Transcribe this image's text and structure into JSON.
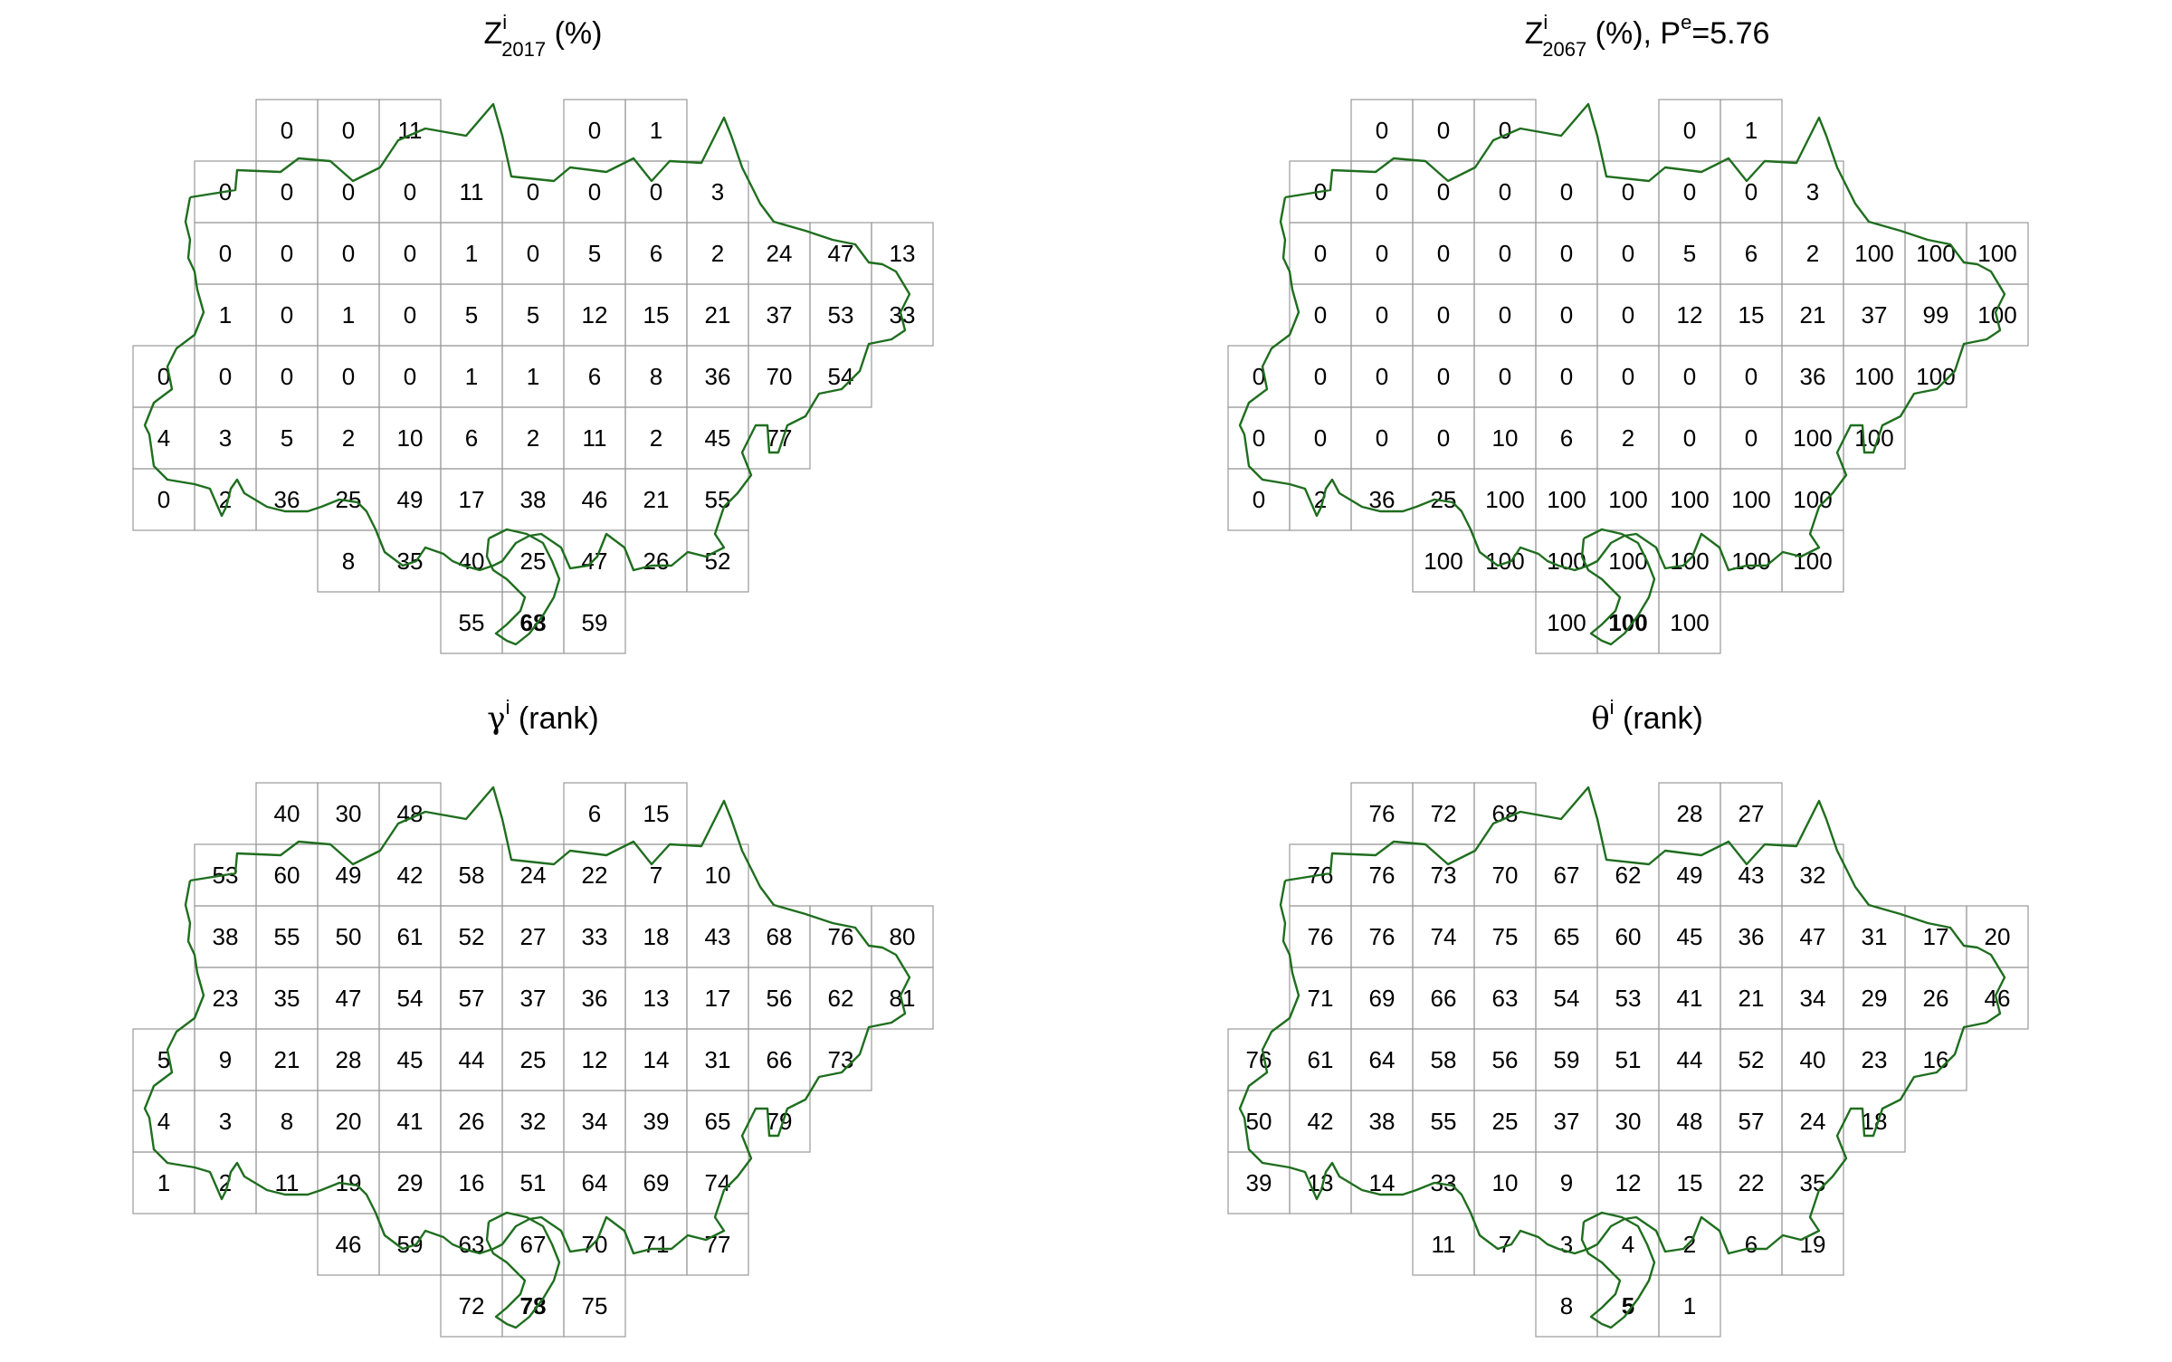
{
  "panels": [
    {
      "id": "z2017",
      "title": {
        "base": "Z",
        "sup": "i",
        "sub": "2017",
        "rest": " (%)"
      },
      "rows": [
        {
          "cells": [
            null,
            null,
            null,
            "0",
            "0",
            "11",
            null,
            null,
            "0",
            "1",
            null,
            null,
            null
          ],
          "bold": []
        },
        {
          "cells": [
            null,
            null,
            "0",
            "0",
            "0",
            "0",
            "11",
            "0",
            "0",
            "0",
            "3",
            null,
            null,
            null
          ],
          "bold": []
        },
        {
          "cells": [
            null,
            null,
            "0",
            "0",
            "0",
            "0",
            "1",
            "0",
            "5",
            "6",
            "2",
            "24",
            "47",
            "13"
          ],
          "bold": []
        },
        {
          "cells": [
            null,
            null,
            "1",
            "0",
            "1",
            "0",
            "5",
            "5",
            "12",
            "15",
            "21",
            "37",
            "53",
            "33"
          ],
          "bold": []
        },
        {
          "cells": [
            null,
            "0",
            "0",
            "0",
            "0",
            "0",
            "1",
            "1",
            "6",
            "8",
            "36",
            "70",
            "54",
            null
          ],
          "bold": []
        },
        {
          "cells": [
            null,
            "4",
            "3",
            "5",
            "2",
            "10",
            "6",
            "2",
            "11",
            "2",
            "45",
            "77",
            null,
            null
          ],
          "bold": []
        },
        {
          "cells": [
            null,
            "0",
            "2",
            "36",
            "25",
            "49",
            "17",
            "38",
            "46",
            "21",
            "55",
            null,
            null,
            null
          ],
          "bold": []
        },
        {
          "cells": [
            null,
            null,
            null,
            null,
            "8",
            "35",
            "40",
            "25",
            "47",
            "26",
            "52",
            null,
            null,
            null
          ],
          "bold": []
        },
        {
          "cells": [
            null,
            null,
            null,
            null,
            null,
            null,
            "55",
            "68",
            "59",
            null,
            null,
            null,
            null,
            null
          ],
          "bold": [
            7
          ]
        }
      ]
    },
    {
      "id": "z2067",
      "title": {
        "base": "Z",
        "sup": "i",
        "sub": "2067",
        "rest": " (%), P",
        "sup2": "e",
        "rest2": "=5.76"
      },
      "rows": [
        {
          "cells": [
            null,
            null,
            null,
            "0",
            "0",
            "0",
            null,
            null,
            "0",
            "1",
            null,
            null,
            null
          ],
          "bold": []
        },
        {
          "cells": [
            null,
            null,
            "0",
            "0",
            "0",
            "0",
            "0",
            "0",
            "0",
            "0",
            "3",
            null,
            null,
            null
          ],
          "bold": []
        },
        {
          "cells": [
            null,
            null,
            "0",
            "0",
            "0",
            "0",
            "0",
            "0",
            "5",
            "6",
            "2",
            "100",
            "100",
            "100"
          ],
          "bold": []
        },
        {
          "cells": [
            null,
            null,
            "0",
            "0",
            "0",
            "0",
            "0",
            "0",
            "12",
            "15",
            "21",
            "37",
            "99",
            "100"
          ],
          "bold": []
        },
        {
          "cells": [
            null,
            "0",
            "0",
            "0",
            "0",
            "0",
            "0",
            "0",
            "0",
            "0",
            "36",
            "100",
            "100",
            null
          ],
          "bold": []
        },
        {
          "cells": [
            null,
            "0",
            "0",
            "0",
            "0",
            "10",
            "6",
            "2",
            "0",
            "0",
            "100",
            "100",
            null,
            null
          ],
          "bold": []
        },
        {
          "cells": [
            null,
            "0",
            "2",
            "36",
            "25",
            "100",
            "100",
            "100",
            "100",
            "100",
            "100",
            null,
            null,
            null
          ],
          "bold": []
        },
        {
          "cells": [
            null,
            null,
            null,
            null,
            "100",
            "100",
            "100",
            "100",
            "100",
            "100",
            "100",
            null,
            null,
            null
          ],
          "bold": []
        },
        {
          "cells": [
            null,
            null,
            null,
            null,
            null,
            null,
            "100",
            "100",
            "100",
            null,
            null,
            null,
            null,
            null
          ],
          "bold": [
            7
          ]
        }
      ]
    },
    {
      "id": "gamma",
      "title": {
        "base": "γ",
        "sup": "i",
        "sub": "",
        "rest": " (rank)"
      },
      "rows": [
        {
          "cells": [
            null,
            null,
            null,
            "40",
            "30",
            "48",
            null,
            null,
            "6",
            "15",
            null,
            null,
            null
          ],
          "bold": []
        },
        {
          "cells": [
            null,
            null,
            "53",
            "60",
            "49",
            "42",
            "58",
            "24",
            "22",
            "7",
            "10",
            null,
            null,
            null
          ],
          "bold": []
        },
        {
          "cells": [
            null,
            null,
            "38",
            "55",
            "50",
            "61",
            "52",
            "27",
            "33",
            "18",
            "43",
            "68",
            "76",
            "80"
          ],
          "bold": []
        },
        {
          "cells": [
            null,
            null,
            "23",
            "35",
            "47",
            "54",
            "57",
            "37",
            "36",
            "13",
            "17",
            "56",
            "62",
            "81"
          ],
          "bold": []
        },
        {
          "cells": [
            null,
            "5",
            "9",
            "21",
            "28",
            "45",
            "44",
            "25",
            "12",
            "14",
            "31",
            "66",
            "73",
            null
          ],
          "bold": []
        },
        {
          "cells": [
            null,
            "4",
            "3",
            "8",
            "20",
            "41",
            "26",
            "32",
            "34",
            "39",
            "65",
            "79",
            null,
            null
          ],
          "bold": []
        },
        {
          "cells": [
            null,
            "1",
            "2",
            "11",
            "19",
            "29",
            "16",
            "51",
            "64",
            "69",
            "74",
            null,
            null,
            null
          ],
          "bold": []
        },
        {
          "cells": [
            null,
            null,
            null,
            null,
            "46",
            "59",
            "63",
            "67",
            "70",
            "71",
            "77",
            null,
            null,
            null
          ],
          "bold": []
        },
        {
          "cells": [
            null,
            null,
            null,
            null,
            null,
            null,
            "72",
            "78",
            "75",
            null,
            null,
            null,
            null,
            null
          ],
          "bold": [
            7
          ]
        }
      ]
    },
    {
      "id": "theta",
      "title": {
        "base": "θ",
        "sup": "i",
        "sub": "",
        "rest": " (rank)"
      },
      "rows": [
        {
          "cells": [
            null,
            null,
            null,
            "76",
            "72",
            "68",
            null,
            null,
            "28",
            "27",
            null,
            null,
            null
          ],
          "bold": []
        },
        {
          "cells": [
            null,
            null,
            "76",
            "76",
            "73",
            "70",
            "67",
            "62",
            "49",
            "43",
            "32",
            null,
            null,
            null
          ],
          "bold": []
        },
        {
          "cells": [
            null,
            null,
            "76",
            "76",
            "74",
            "75",
            "65",
            "60",
            "45",
            "36",
            "47",
            "31",
            "17",
            "20"
          ],
          "bold": []
        },
        {
          "cells": [
            null,
            null,
            "71",
            "69",
            "66",
            "63",
            "54",
            "53",
            "41",
            "21",
            "34",
            "29",
            "26",
            "46"
          ],
          "bold": []
        },
        {
          "cells": [
            null,
            "76",
            "61",
            "64",
            "58",
            "56",
            "59",
            "51",
            "44",
            "52",
            "40",
            "23",
            "16",
            null
          ],
          "bold": []
        },
        {
          "cells": [
            null,
            "50",
            "42",
            "38",
            "55",
            "25",
            "37",
            "30",
            "48",
            "57",
            "24",
            "18",
            null,
            null
          ],
          "bold": []
        },
        {
          "cells": [
            null,
            "39",
            "13",
            "14",
            "33",
            "10",
            "9",
            "12",
            "15",
            "22",
            "35",
            null,
            null,
            null
          ],
          "bold": []
        },
        {
          "cells": [
            null,
            null,
            null,
            null,
            "11",
            "7",
            "3",
            "4",
            "2",
            "6",
            "19",
            null,
            null,
            null
          ],
          "bold": []
        },
        {
          "cells": [
            null,
            null,
            null,
            null,
            null,
            null,
            "8",
            "5",
            "1",
            null,
            null,
            null,
            null,
            null
          ],
          "bold": [
            7
          ]
        }
      ]
    }
  ],
  "colors": {
    "grid_line": "#9a9a9a",
    "boundary": "#1f6e1f",
    "text": "#000000"
  }
}
